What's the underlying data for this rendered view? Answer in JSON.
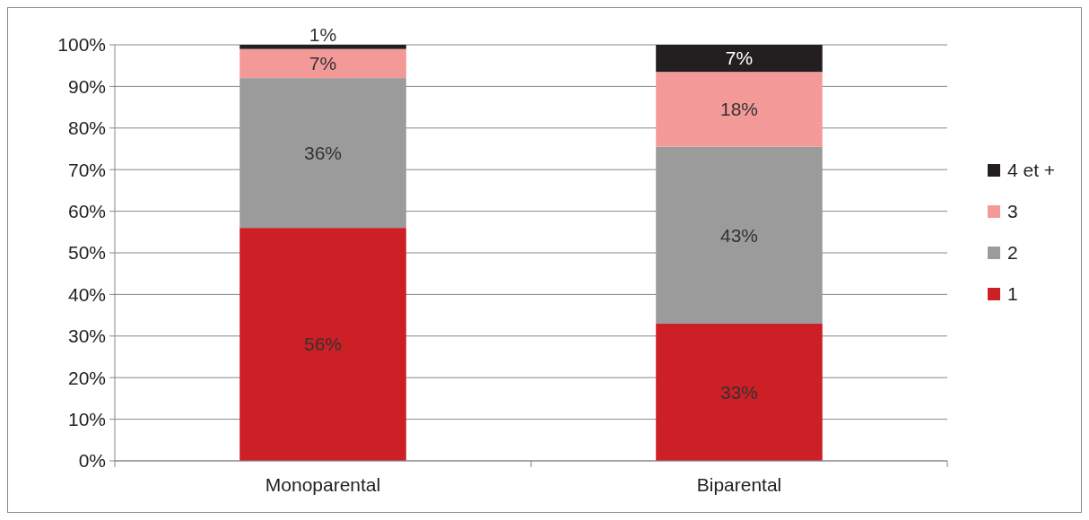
{
  "chart_data": {
    "type": "bar",
    "stacked": true,
    "categories": [
      "Monoparental",
      "Biparental"
    ],
    "series": [
      {
        "name": "1",
        "color": "#cc1f26",
        "values": [
          56,
          33
        ],
        "value_labels": [
          "56%",
          "33%"
        ]
      },
      {
        "name": "2",
        "color": "#9b9b9b",
        "values": [
          36,
          42.5
        ],
        "value_labels": [
          "36%",
          "43%"
        ]
      },
      {
        "name": "3",
        "color": "#f39a99",
        "values": [
          7,
          18
        ],
        "value_labels": [
          "7%",
          "18%"
        ]
      },
      {
        "name": "4 et +",
        "color": "#231f20",
        "values": [
          1,
          6.5
        ],
        "value_labels": [
          "1%",
          "7%"
        ]
      }
    ],
    "ylim": [
      0,
      100
    ],
    "yticks": [
      {
        "value": 0,
        "label": "0%"
      },
      {
        "value": 10,
        "label": "10%"
      },
      {
        "value": 20,
        "label": "20%"
      },
      {
        "value": 30,
        "label": "30%"
      },
      {
        "value": 40,
        "label": "40%"
      },
      {
        "value": 50,
        "label": "50%"
      },
      {
        "value": 60,
        "label": "60%"
      },
      {
        "value": 70,
        "label": "70%"
      },
      {
        "value": 80,
        "label": "80%"
      },
      {
        "value": 90,
        "label": "90%"
      },
      {
        "value": 100,
        "label": "100%"
      }
    ],
    "grid": "y",
    "legend": "right"
  }
}
